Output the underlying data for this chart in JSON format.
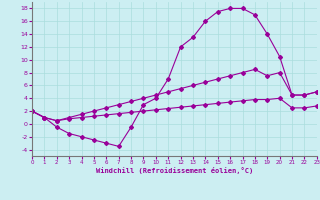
{
  "xlabel": "Windchill (Refroidissement éolien,°C)",
  "background_color": "#cceef2",
  "grid_color": "#aadddd",
  "line_color": "#990099",
  "ylim": [
    -5,
    19
  ],
  "xlim": [
    0,
    23
  ],
  "yticks": [
    -4,
    -2,
    0,
    2,
    4,
    6,
    8,
    10,
    12,
    14,
    16,
    18
  ],
  "xticks": [
    0,
    1,
    2,
    3,
    4,
    5,
    6,
    7,
    8,
    9,
    10,
    11,
    12,
    13,
    14,
    15,
    16,
    17,
    18,
    19,
    20,
    21,
    22,
    23
  ],
  "line1_x": [
    0,
    1,
    2,
    3,
    4,
    5,
    6,
    7,
    8,
    9,
    10,
    11,
    12,
    13,
    14,
    15,
    16,
    17,
    18,
    19,
    20,
    21,
    22,
    23
  ],
  "line1_y": [
    2,
    1,
    -0.5,
    -1.5,
    -2.0,
    -2.5,
    -3.0,
    -3.5,
    -0.5,
    3.0,
    4.0,
    7.0,
    12.0,
    13.5,
    16.0,
    17.5,
    18.0,
    18.0,
    17.0,
    14.0,
    10.5,
    4.5,
    4.5,
    5.0
  ],
  "line2_x": [
    0,
    1,
    2,
    3,
    4,
    5,
    6,
    7,
    8,
    9,
    10,
    11,
    12,
    13,
    14,
    15,
    16,
    17,
    18,
    19,
    20,
    21,
    22,
    23
  ],
  "line2_y": [
    2,
    1.0,
    0.5,
    1.0,
    1.5,
    2.0,
    2.5,
    3.0,
    3.5,
    4.0,
    4.5,
    5.0,
    5.5,
    6.0,
    6.5,
    7.0,
    7.5,
    8.0,
    8.5,
    7.5,
    8.0,
    4.5,
    4.5,
    5.0
  ],
  "line3_x": [
    0,
    1,
    2,
    3,
    4,
    5,
    6,
    7,
    8,
    9,
    10,
    11,
    12,
    13,
    14,
    15,
    16,
    17,
    18,
    19,
    20,
    21,
    22,
    23
  ],
  "line3_y": [
    2,
    1.0,
    0.5,
    0.8,
    1.0,
    1.2,
    1.4,
    1.6,
    1.8,
    2.0,
    2.2,
    2.4,
    2.6,
    2.8,
    3.0,
    3.2,
    3.4,
    3.6,
    3.8,
    3.8,
    4.0,
    2.5,
    2.5,
    2.8
  ]
}
